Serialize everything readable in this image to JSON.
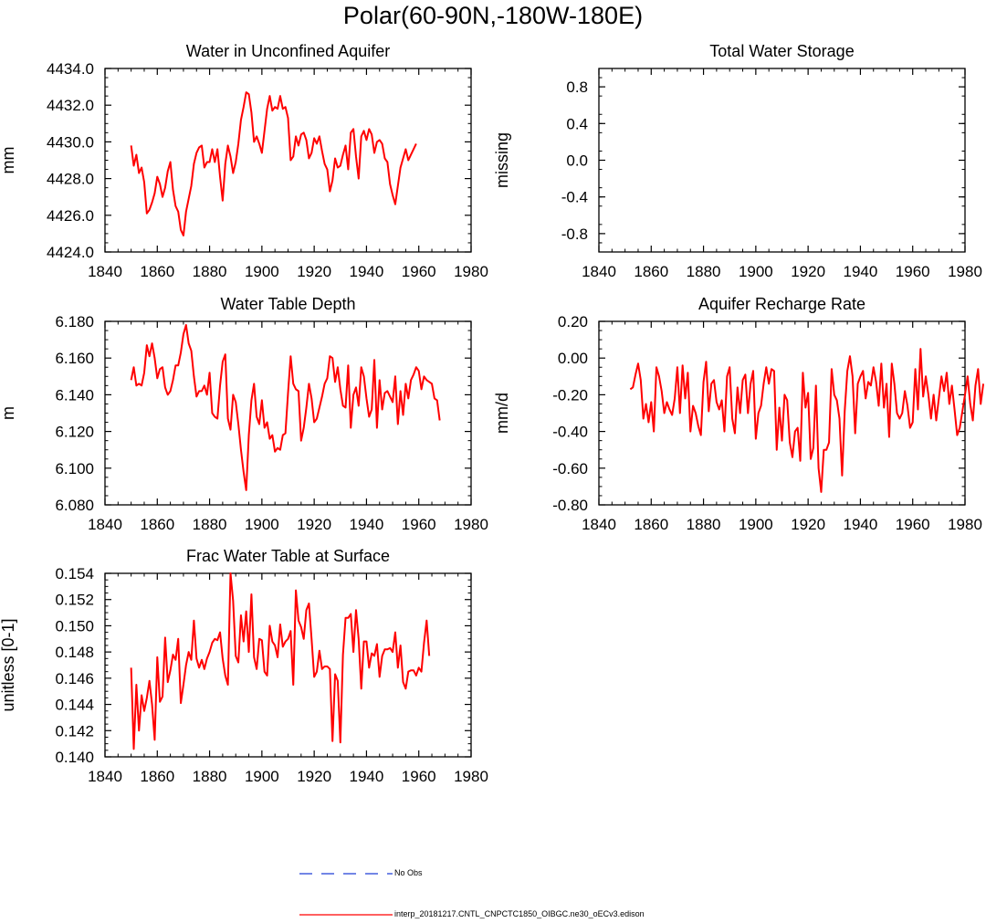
{
  "title": "Polar(60-90N,-180W-180E)",
  "colors": {
    "model": "#ff0000",
    "obs": "#1f3fd6",
    "axis": "#000000"
  },
  "legend": {
    "obs_label": "No Obs",
    "model_label": "interp_20181217.CNTL_CNPCTC1850_OIBGC.ne30_oECv3.edison"
  },
  "chart_data": [
    {
      "id": "unconfined",
      "type": "line",
      "title": "Water in Unconfined Aquifer",
      "xlabel": "",
      "ylabel": "mm",
      "xlim": [
        1840,
        1980
      ],
      "ylim": [
        4424.0,
        4434.0
      ],
      "xticks": [
        1840,
        1860,
        1880,
        1900,
        1920,
        1940,
        1960,
        1980
      ],
      "xtick_labels": [
        "1840",
        "1860",
        "1880",
        "1900",
        "1920",
        "1940",
        "1960",
        "1980"
      ],
      "yticks": [
        4424,
        4426,
        4428,
        4430,
        4432,
        4434
      ],
      "ytick_labels": [
        "4424.0",
        "4426.0",
        "4428.0",
        "4430.0",
        "4432.0",
        "4434.0"
      ],
      "series": [
        {
          "name": "interp_20181217.CNTL_CNPCTC1850_OIBGC.ne30_oECv3.edison",
          "x_start": 1850,
          "values": [
            4429.8,
            4428.7,
            4429.3,
            4428.3,
            4428.6,
            4427.8,
            4426.1,
            4426.3,
            4426.7,
            4427.2,
            4428.1,
            4427.7,
            4427.0,
            4427.5,
            4428.4,
            4428.9,
            4427.4,
            4426.5,
            4426.2,
            4425.2,
            4424.9,
            4426.2,
            4426.9,
            4427.6,
            4428.8,
            4429.4,
            4429.7,
            4429.8,
            4428.6,
            4428.9,
            4428.9,
            4429.6,
            4428.9,
            4429.6,
            4428.1,
            4426.8,
            4428.8,
            4429.8,
            4429.2,
            4428.3,
            4428.9,
            4429.9,
            4431.2,
            4431.9,
            4432.7,
            4432.6,
            4431.6,
            4430.0,
            4430.3,
            4429.9,
            4429.4,
            4430.6,
            4431.8,
            4432.5,
            4431.7,
            4431.9,
            4431.8,
            4432.5,
            4431.8,
            4431.9,
            4431.3,
            4429.0,
            4429.2,
            4430.3,
            4429.8,
            4430.4,
            4430.5,
            4430.1,
            4429.1,
            4429.4,
            4430.2,
            4429.9,
            4430.3,
            4429.5,
            4428.8,
            4428.5,
            4427.3,
            4427.9,
            4429.1,
            4428.6,
            4428.7,
            4429.3,
            4429.8,
            4428.5,
            4430.5,
            4430.7,
            4429.2,
            4428.0,
            4430.3,
            4430.6,
            4430.1,
            4430.7,
            4430.4,
            4429.4,
            4430.0,
            4430.1,
            4429.9,
            4429.1,
            4428.9,
            4427.7,
            4427.1,
            4426.6,
            4427.6,
            4428.6,
            4429.1,
            4429.6,
            4429.0,
            4429.3,
            4429.6,
            4429.9
          ]
        }
      ]
    },
    {
      "id": "total-storage",
      "type": "line",
      "title": "Total Water Storage",
      "xlabel": "",
      "ylabel": "missing",
      "xlim": [
        1840,
        1980
      ],
      "ylim": [
        -1.0,
        1.0
      ],
      "xticks": [
        1840,
        1860,
        1880,
        1900,
        1920,
        1940,
        1960,
        1980
      ],
      "xtick_labels": [
        "1840",
        "1860",
        "1880",
        "1900",
        "1920",
        "1940",
        "1960",
        "1980"
      ],
      "yticks": [
        -0.8,
        -0.4,
        0.0,
        0.4,
        0.8
      ],
      "ytick_labels": [
        "-0.8",
        "-0.4",
        "0.0",
        "0.4",
        "0.8"
      ],
      "series": []
    },
    {
      "id": "table-depth",
      "type": "line",
      "title": "Water Table Depth",
      "xlabel": "",
      "ylabel": "m",
      "xlim": [
        1840,
        1980
      ],
      "ylim": [
        6.08,
        6.18
      ],
      "xticks": [
        1840,
        1860,
        1880,
        1900,
        1920,
        1940,
        1960,
        1980
      ],
      "xtick_labels": [
        "1840",
        "1860",
        "1880",
        "1900",
        "1920",
        "1940",
        "1960",
        "1980"
      ],
      "yticks": [
        6.08,
        6.1,
        6.12,
        6.14,
        6.16,
        6.18
      ],
      "ytick_labels": [
        "6.080",
        "6.100",
        "6.120",
        "6.140",
        "6.160",
        "6.180"
      ],
      "series": [
        {
          "name": "interp_20181217.CNTL_CNPCTC1850_OIBGC.ne30_oECv3.edison",
          "x_start": 1850,
          "values": [
            6.148,
            6.155,
            6.145,
            6.146,
            6.145,
            6.152,
            6.167,
            6.161,
            6.168,
            6.16,
            6.149,
            6.154,
            6.155,
            6.144,
            6.14,
            6.142,
            6.148,
            6.156,
            6.156,
            6.163,
            6.173,
            6.178,
            6.168,
            6.164,
            6.15,
            6.139,
            6.142,
            6.142,
            6.145,
            6.14,
            6.152,
            6.13,
            6.128,
            6.127,
            6.145,
            6.158,
            6.162,
            6.127,
            6.121,
            6.14,
            6.136,
            6.124,
            6.11,
            6.098,
            6.088,
            6.118,
            6.137,
            6.146,
            6.128,
            6.124,
            6.137,
            6.122,
            6.125,
            6.116,
            6.118,
            6.109,
            6.111,
            6.11,
            6.118,
            6.119,
            6.141,
            6.161,
            6.146,
            6.143,
            6.142,
            6.115,
            6.122,
            6.133,
            6.146,
            6.138,
            6.125,
            6.127,
            6.133,
            6.139,
            6.146,
            6.149,
            6.161,
            6.16,
            6.147,
            6.155,
            6.143,
            6.134,
            6.133,
            6.156,
            6.122,
            6.14,
            6.144,
            6.134,
            6.155,
            6.15,
            6.138,
            6.128,
            6.132,
            6.159,
            6.122,
            6.148,
            6.132,
            6.141,
            6.142,
            6.139,
            6.136,
            6.15,
            6.124,
            6.142,
            6.129,
            6.146,
            6.138,
            6.148,
            6.151,
            6.155,
            6.153,
            6.143,
            6.15,
            6.148,
            6.147,
            6.146,
            6.138,
            6.137,
            6.126
          ]
        }
      ]
    },
    {
      "id": "recharge",
      "type": "line",
      "title": "Aquifer Recharge Rate",
      "xlabel": "",
      "ylabel": "mm/d",
      "xlim": [
        1840,
        1980
      ],
      "ylim": [
        -0.8,
        0.2
      ],
      "xticks": [
        1840,
        1860,
        1880,
        1900,
        1920,
        1940,
        1960,
        1980
      ],
      "xtick_labels": [
        "1840",
        "1860",
        "1880",
        "1900",
        "1920",
        "1940",
        "1960",
        "1980"
      ],
      "yticks": [
        -0.8,
        -0.6,
        -0.4,
        -0.2,
        0.0,
        0.2
      ],
      "ytick_labels": [
        "-0.80",
        "-0.60",
        "-0.40",
        "-0.20",
        "0.00",
        "0.20"
      ],
      "series": [
        {
          "name": "interp_20181217.CNTL_CNPCTC1850_OIBGC.ne30_oECv3.edison",
          "x_start": 1852,
          "values": [
            -0.17,
            -0.16,
            -0.09,
            -0.03,
            -0.12,
            -0.33,
            -0.25,
            -0.35,
            -0.24,
            -0.4,
            -0.05,
            -0.1,
            -0.18,
            -0.3,
            -0.24,
            -0.28,
            -0.31,
            -0.22,
            -0.05,
            -0.3,
            -0.04,
            -0.22,
            -0.08,
            -0.4,
            -0.26,
            -0.3,
            -0.37,
            -0.42,
            -0.13,
            -0.02,
            -0.29,
            -0.14,
            -0.12,
            -0.24,
            -0.28,
            -0.23,
            -0.4,
            -0.1,
            -0.05,
            -0.33,
            -0.41,
            -0.16,
            -0.3,
            -0.12,
            -0.09,
            -0.3,
            -0.14,
            -0.07,
            -0.44,
            -0.3,
            -0.26,
            -0.14,
            -0.05,
            -0.14,
            -0.06,
            -0.07,
            -0.5,
            -0.27,
            -0.45,
            -0.2,
            -0.23,
            -0.46,
            -0.54,
            -0.4,
            -0.38,
            -0.56,
            -0.08,
            -0.27,
            -0.19,
            -0.55,
            -0.49,
            -0.15,
            -0.6,
            -0.73,
            -0.5,
            -0.5,
            -0.46,
            -0.06,
            -0.2,
            -0.23,
            -0.33,
            -0.64,
            -0.29,
            -0.07,
            0.01,
            -0.1,
            -0.41,
            -0.14,
            -0.1,
            -0.07,
            -0.22,
            -0.13,
            -0.15,
            -0.05,
            -0.13,
            -0.26,
            -0.03,
            -0.27,
            -0.14,
            -0.43,
            -0.03,
            -0.14,
            -0.3,
            -0.33,
            -0.3,
            -0.18,
            -0.26,
            -0.38,
            -0.35,
            -0.06,
            -0.28,
            0.05,
            -0.21,
            -0.1,
            -0.2,
            -0.33,
            -0.2,
            -0.34,
            -0.22,
            -0.1,
            -0.18,
            -0.08,
            -0.25,
            -0.15,
            -0.28,
            -0.42,
            -0.38,
            -0.29,
            -0.2,
            -0.1,
            -0.25,
            -0.34,
            -0.15,
            -0.06,
            -0.25,
            -0.14
          ]
        }
      ]
    },
    {
      "id": "frac",
      "type": "line",
      "title": "Frac Water Table at Surface",
      "xlabel": "",
      "ylabel": "unitless [0-1]",
      "xlim": [
        1840,
        1980
      ],
      "ylim": [
        0.14,
        0.154
      ],
      "xticks": [
        1840,
        1860,
        1880,
        1900,
        1920,
        1940,
        1960,
        1980
      ],
      "xtick_labels": [
        "1840",
        "1860",
        "1880",
        "1900",
        "1920",
        "1940",
        "1960",
        "1980"
      ],
      "yticks": [
        0.14,
        0.142,
        0.144,
        0.146,
        0.148,
        0.15,
        0.152,
        0.154
      ],
      "ytick_labels": [
        "0.140",
        "0.142",
        "0.144",
        "0.146",
        "0.148",
        "0.150",
        "0.152",
        "0.154"
      ],
      "series": [
        {
          "name": "interp_20181217.CNTL_CNPCTC1850_OIBGC.ne30_oECv3.edison",
          "x_start": 1850,
          "values": [
            0.1468,
            0.1406,
            0.1455,
            0.142,
            0.1447,
            0.1435,
            0.1445,
            0.1458,
            0.144,
            0.1413,
            0.1476,
            0.1442,
            0.1446,
            0.1491,
            0.1457,
            0.1466,
            0.1478,
            0.1474,
            0.149,
            0.1441,
            0.1455,
            0.147,
            0.148,
            0.1474,
            0.1504,
            0.1475,
            0.1468,
            0.1474,
            0.1467,
            0.1475,
            0.148,
            0.1487,
            0.149,
            0.1489,
            0.1495,
            0.1475,
            0.1462,
            0.1455,
            0.154,
            0.1519,
            0.1477,
            0.1472,
            0.1508,
            0.1488,
            0.1511,
            0.148,
            0.1524,
            0.1476,
            0.1467,
            0.149,
            0.1489,
            0.1465,
            0.1462,
            0.15,
            0.1488,
            0.1485,
            0.1476,
            0.1501,
            0.1484,
            0.1488,
            0.149,
            0.1496,
            0.1455,
            0.1527,
            0.1504,
            0.1499,
            0.149,
            0.1512,
            0.1517,
            0.149,
            0.1461,
            0.1465,
            0.1481,
            0.1467,
            0.1469,
            0.1469,
            0.1467,
            0.1412,
            0.1463,
            0.1458,
            0.1411,
            0.1478,
            0.1506,
            0.1506,
            0.1509,
            0.148,
            0.1512,
            0.149,
            0.1452,
            0.1488,
            0.1488,
            0.1468,
            0.1479,
            0.1477,
            0.1486,
            0.1461,
            0.1477,
            0.1482,
            0.1482,
            0.1483,
            0.148,
            0.1495,
            0.1468,
            0.1485,
            0.1457,
            0.1452,
            0.1465,
            0.1466,
            0.1466,
            0.1462,
            0.1468,
            0.1465,
            0.1487,
            0.1504,
            0.1477
          ]
        }
      ]
    }
  ]
}
